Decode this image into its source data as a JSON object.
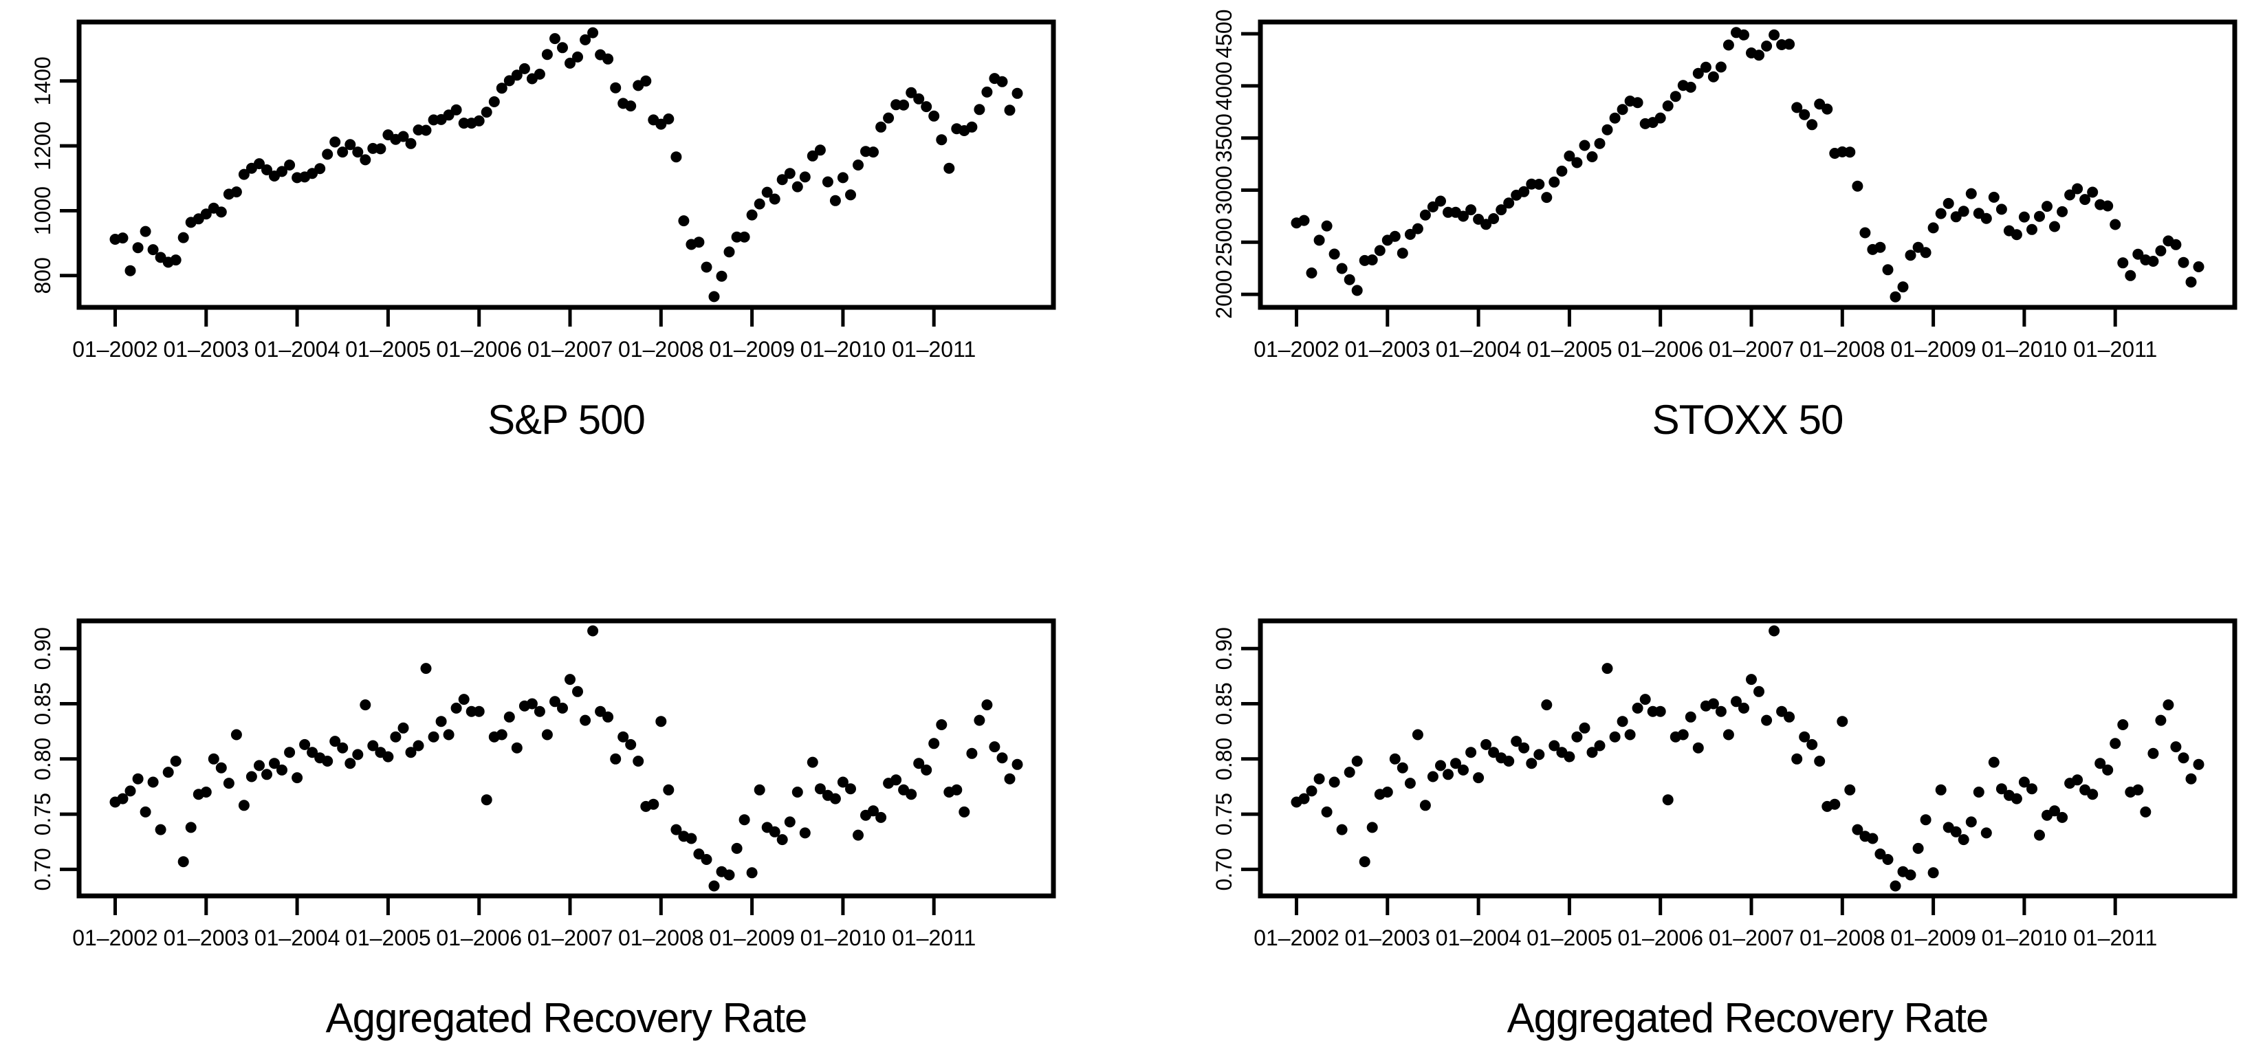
{
  "figure": {
    "background_color": "#ffffff",
    "point_color": "#000000",
    "axis_color": "#000000"
  },
  "chart_data": [
    {
      "type": "scatter",
      "title": "S&P 500",
      "x_unit": "month",
      "n_points": 120,
      "xlim_months": [
        -4.76,
        123.76
      ],
      "x_ticks": {
        "month_positions": [
          0,
          12,
          24,
          36,
          48,
          60,
          72,
          84,
          96,
          108
        ],
        "labels": [
          "01–2002",
          "01–2003",
          "01–2004",
          "01–2005",
          "01–2006",
          "01–2007",
          "01–2008",
          "01–2009",
          "01–2010",
          "01–2011"
        ]
      },
      "ylim": [
        702,
        1582
      ],
      "y_ticks": {
        "values": [
          800,
          1000,
          1200,
          1400
        ],
        "labels": [
          "800",
          "1000",
          "1200",
          "1400"
        ]
      },
      "values": [
        912,
        916,
        815,
        886,
        936,
        880,
        856,
        841,
        848,
        917,
        964,
        975,
        990,
        1008,
        996,
        1051,
        1058,
        1112,
        1131,
        1145,
        1126,
        1107,
        1121,
        1141,
        1102,
        1104,
        1115,
        1130,
        1174,
        1212,
        1181,
        1204,
        1181,
        1157,
        1192,
        1191,
        1234,
        1220,
        1229,
        1207,
        1249,
        1248,
        1280,
        1281,
        1295,
        1311,
        1270,
        1270,
        1277,
        1304,
        1336,
        1378,
        1401,
        1418,
        1438,
        1407,
        1421,
        1482,
        1531,
        1503,
        1455,
        1474,
        1527,
        1549,
        1481,
        1468,
        1379,
        1331,
        1323,
        1386,
        1400,
        1280,
        1267,
        1283,
        1166,
        969,
        896,
        903,
        826,
        735,
        798,
        873,
        919,
        919,
        987,
        1021,
        1057,
        1036,
        1096,
        1115,
        1074,
        1104,
        1169,
        1187,
        1089,
        1031,
        1102,
        1049,
        1141,
        1183,
        1181,
        1258,
        1286,
        1327,
        1326,
        1364,
        1345,
        1321,
        1292,
        1219,
        1131,
        1253,
        1247,
        1258,
        1312,
        1366,
        1408,
        1398,
        1310,
        1362
      ]
    },
    {
      "type": "scatter",
      "title": "STOXX 50",
      "x_unit": "month",
      "n_points": 120,
      "xlim_months": [
        -4.76,
        123.76
      ],
      "x_ticks": {
        "month_positions": [
          0,
          12,
          24,
          36,
          48,
          60,
          72,
          84,
          96,
          108
        ],
        "labels": [
          "01–2002",
          "01–2003",
          "01–2004",
          "01–2005",
          "01–2006",
          "01–2007",
          "01–2008",
          "01–2009",
          "01–2010",
          "01–2011"
        ]
      },
      "ylim": [
        1875,
        4613
      ],
      "y_ticks": {
        "values": [
          2000,
          2500,
          3000,
          3500,
          4000,
          4500
        ],
        "labels": [
          "2000",
          "2500",
          "3000",
          "3500",
          "4000",
          "4500"
        ]
      },
      "values": [
        2685,
        2709,
        2205,
        2519,
        2656,
        2386,
        2248,
        2141,
        2037,
        2324,
        2330,
        2420,
        2519,
        2556,
        2395,
        2575,
        2630,
        2761,
        2839,
        2894,
        2787,
        2787,
        2749,
        2811,
        2720,
        2671,
        2726,
        2811,
        2876,
        2951,
        2985,
        3058,
        3056,
        2930,
        3077,
        3182,
        3327,
        3264,
        3429,
        3320,
        3447,
        3579,
        3691,
        3774,
        3854,
        3840,
        3637,
        3649,
        3692,
        3808,
        3899,
        4005,
        3987,
        4120,
        4179,
        4087,
        4181,
        4392,
        4512,
        4489,
        4316,
        4295,
        4382,
        4489,
        4395,
        4400,
        3792,
        3724,
        3628,
        3825,
        3778,
        3353,
        3367,
        3365,
        3038,
        2591,
        2430,
        2451,
        2236,
        1976,
        2071,
        2375,
        2451,
        2401,
        2638,
        2775,
        2872,
        2744,
        2797,
        2966,
        2777,
        2728,
        2931,
        2816,
        2610,
        2573,
        2742,
        2622,
        2748,
        2844,
        2650,
        2793,
        2954,
        3013,
        2910,
        2980,
        2861,
        2848,
        2670,
        2302,
        2180,
        2385,
        2330,
        2317,
        2417,
        2512,
        2477,
        2306,
        2118,
        2264
      ]
    },
    {
      "type": "scatter",
      "title": "Aggregated Recovery Rate",
      "x_unit": "month",
      "n_points": 120,
      "xlim_months": [
        -4.76,
        123.76
      ],
      "x_ticks": {
        "month_positions": [
          0,
          12,
          24,
          36,
          48,
          60,
          72,
          84,
          96,
          108
        ],
        "labels": [
          "01–2002",
          "01–2003",
          "01–2004",
          "01–2005",
          "01–2006",
          "01–2007",
          "01–2008",
          "01–2009",
          "01–2010",
          "01–2011"
        ]
      },
      "ylim": [
        0.676,
        0.925
      ],
      "y_ticks": {
        "values": [
          0.7,
          0.75,
          0.8,
          0.85,
          0.9
        ],
        "labels": [
          "0.70",
          "0.75",
          "0.80",
          "0.85",
          "0.90"
        ]
      },
      "values": [
        0.761,
        0.764,
        0.771,
        0.782,
        0.752,
        0.779,
        0.736,
        0.788,
        0.798,
        0.707,
        0.738,
        0.768,
        0.77,
        0.8,
        0.792,
        0.778,
        0.822,
        0.758,
        0.784,
        0.794,
        0.786,
        0.796,
        0.79,
        0.806,
        0.783,
        0.813,
        0.806,
        0.801,
        0.798,
        0.816,
        0.81,
        0.796,
        0.804,
        0.849,
        0.812,
        0.806,
        0.802,
        0.82,
        0.828,
        0.806,
        0.812,
        0.882,
        0.82,
        0.834,
        0.822,
        0.846,
        0.854,
        0.843,
        0.843,
        0.763,
        0.82,
        0.822,
        0.838,
        0.81,
        0.848,
        0.85,
        0.843,
        0.822,
        0.852,
        0.846,
        0.872,
        0.861,
        0.835,
        0.916,
        0.843,
        0.838,
        0.8,
        0.82,
        0.813,
        0.798,
        0.757,
        0.759,
        0.834,
        0.772,
        0.736,
        0.73,
        0.728,
        0.714,
        0.709,
        0.685,
        0.698,
        0.695,
        0.719,
        0.745,
        0.697,
        0.772,
        0.738,
        0.734,
        0.727,
        0.743,
        0.77,
        0.733,
        0.797,
        0.773,
        0.767,
        0.764,
        0.779,
        0.773,
        0.731,
        0.749,
        0.753,
        0.747,
        0.778,
        0.781,
        0.772,
        0.768,
        0.796,
        0.79,
        0.814,
        0.831,
        0.77,
        0.772,
        0.752,
        0.805,
        0.835,
        0.849,
        0.811,
        0.801,
        0.782,
        0.795
      ]
    },
    {
      "type": "scatter",
      "title": "Aggregated Recovery Rate",
      "x_unit": "month",
      "n_points": 120,
      "xlim_months": [
        -4.76,
        123.76
      ],
      "x_ticks": {
        "month_positions": [
          0,
          12,
          24,
          36,
          48,
          60,
          72,
          84,
          96,
          108
        ],
        "labels": [
          "01–2002",
          "01–2003",
          "01–2004",
          "01–2005",
          "01–2006",
          "01–2007",
          "01–2008",
          "01–2009",
          "01–2010",
          "01–2011"
        ]
      },
      "ylim": [
        0.676,
        0.925
      ],
      "y_ticks": {
        "values": [
          0.7,
          0.75,
          0.8,
          0.85,
          0.9
        ],
        "labels": [
          "0.70",
          "0.75",
          "0.80",
          "0.85",
          "0.90"
        ]
      },
      "values": [
        0.761,
        0.764,
        0.771,
        0.782,
        0.752,
        0.779,
        0.736,
        0.788,
        0.798,
        0.707,
        0.738,
        0.768,
        0.77,
        0.8,
        0.792,
        0.778,
        0.822,
        0.758,
        0.784,
        0.794,
        0.786,
        0.796,
        0.79,
        0.806,
        0.783,
        0.813,
        0.806,
        0.801,
        0.798,
        0.816,
        0.81,
        0.796,
        0.804,
        0.849,
        0.812,
        0.806,
        0.802,
        0.82,
        0.828,
        0.806,
        0.812,
        0.882,
        0.82,
        0.834,
        0.822,
        0.846,
        0.854,
        0.843,
        0.843,
        0.763,
        0.82,
        0.822,
        0.838,
        0.81,
        0.848,
        0.85,
        0.843,
        0.822,
        0.852,
        0.846,
        0.872,
        0.861,
        0.835,
        0.916,
        0.843,
        0.838,
        0.8,
        0.82,
        0.813,
        0.798,
        0.757,
        0.759,
        0.834,
        0.772,
        0.736,
        0.73,
        0.728,
        0.714,
        0.709,
        0.685,
        0.698,
        0.695,
        0.719,
        0.745,
        0.697,
        0.772,
        0.738,
        0.734,
        0.727,
        0.743,
        0.77,
        0.733,
        0.797,
        0.773,
        0.767,
        0.764,
        0.779,
        0.773,
        0.731,
        0.749,
        0.753,
        0.747,
        0.778,
        0.781,
        0.772,
        0.768,
        0.796,
        0.79,
        0.814,
        0.831,
        0.77,
        0.772,
        0.752,
        0.805,
        0.835,
        0.849,
        0.811,
        0.801,
        0.782,
        0.795
      ]
    }
  ]
}
